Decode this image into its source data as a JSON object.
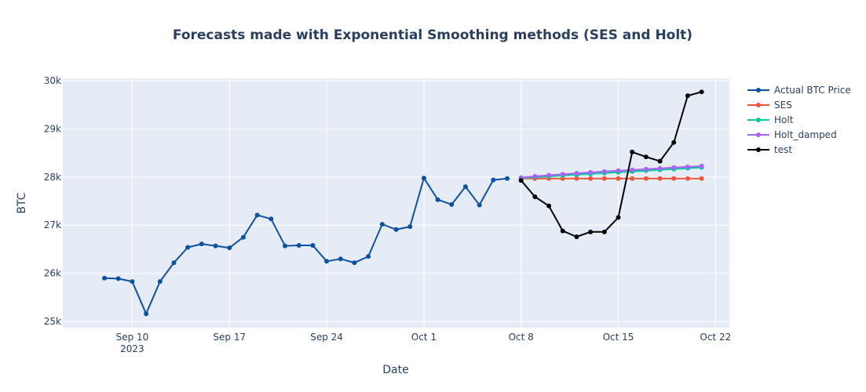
{
  "chart_data": {
    "type": "line",
    "title": "Forecasts made with Exponential Smoothing methods (SES and Holt)",
    "xlabel": "Date",
    "ylabel": "BTC",
    "grid": true,
    "legend_position": "top-right",
    "x_ticks": [
      {
        "date": "2023-09-10",
        "label": "Sep 10",
        "sublabel": "2023"
      },
      {
        "date": "2023-09-17",
        "label": "Sep 17",
        "sublabel": ""
      },
      {
        "date": "2023-09-24",
        "label": "Sep 24",
        "sublabel": ""
      },
      {
        "date": "2023-10-01",
        "label": "Oct 1",
        "sublabel": ""
      },
      {
        "date": "2023-10-08",
        "label": "Oct 8",
        "sublabel": ""
      },
      {
        "date": "2023-10-15",
        "label": "Oct 15",
        "sublabel": ""
      },
      {
        "date": "2023-10-22",
        "label": "Oct 22",
        "sublabel": ""
      }
    ],
    "xlim": [
      "2023-09-05",
      "2023-10-23"
    ],
    "y_ticks": [
      {
        "value": 25000,
        "label": "25k"
      },
      {
        "value": 26000,
        "label": "26k"
      },
      {
        "value": 27000,
        "label": "27k"
      },
      {
        "value": 28000,
        "label": "28k"
      },
      {
        "value": 29000,
        "label": "29k"
      },
      {
        "value": 30000,
        "label": "30k"
      }
    ],
    "ylim": [
      24870,
      30050
    ],
    "series": [
      {
        "name": "Actual BTC Price",
        "color": "#0d52a1",
        "x": [
          "2023-09-08",
          "2023-09-09",
          "2023-09-10",
          "2023-09-11",
          "2023-09-12",
          "2023-09-13",
          "2023-09-14",
          "2023-09-15",
          "2023-09-16",
          "2023-09-17",
          "2023-09-18",
          "2023-09-19",
          "2023-09-20",
          "2023-09-21",
          "2023-09-22",
          "2023-09-23",
          "2023-09-24",
          "2023-09-25",
          "2023-09-26",
          "2023-09-27",
          "2023-09-28",
          "2023-09-29",
          "2023-09-30",
          "2023-10-01",
          "2023-10-02",
          "2023-10-03",
          "2023-10-04",
          "2023-10-05",
          "2023-10-06",
          "2023-10-07"
        ],
        "y": [
          25900,
          25890,
          25830,
          25160,
          25830,
          26220,
          26540,
          26610,
          26570,
          26530,
          26750,
          27210,
          27130,
          26570,
          26580,
          26580,
          26250,
          26300,
          26220,
          26350,
          27020,
          26910,
          26970,
          27980,
          27530,
          27430,
          27800,
          27420,
          27940,
          27970
        ]
      },
      {
        "name": "SES",
        "color": "#ef553b",
        "x": [
          "2023-10-08",
          "2023-10-09",
          "2023-10-10",
          "2023-10-11",
          "2023-10-12",
          "2023-10-13",
          "2023-10-14",
          "2023-10-15",
          "2023-10-16",
          "2023-10-17",
          "2023-10-18",
          "2023-10-19",
          "2023-10-20",
          "2023-10-21"
        ],
        "y": [
          27970,
          27970,
          27970,
          27970,
          27970,
          27970,
          27970,
          27970,
          27970,
          27970,
          27970,
          27970,
          27970,
          27970
        ]
      },
      {
        "name": "Holt",
        "color": "#00cc96",
        "x": [
          "2023-10-08",
          "2023-10-09",
          "2023-10-10",
          "2023-10-11",
          "2023-10-12",
          "2023-10-13",
          "2023-10-14",
          "2023-10-15",
          "2023-10-16",
          "2023-10-17",
          "2023-10-18",
          "2023-10-19",
          "2023-10-20",
          "2023-10-21"
        ],
        "y": [
          27980,
          27997,
          28014,
          28031,
          28048,
          28065,
          28082,
          28099,
          28116,
          28133,
          28150,
          28167,
          28184,
          28201
        ]
      },
      {
        "name": "Holt_damped",
        "color": "#ab63fa",
        "x": [
          "2023-10-08",
          "2023-10-09",
          "2023-10-10",
          "2023-10-11",
          "2023-10-12",
          "2023-10-13",
          "2023-10-14",
          "2023-10-15",
          "2023-10-16",
          "2023-10-17",
          "2023-10-18",
          "2023-10-19",
          "2023-10-20",
          "2023-10-21"
        ],
        "y": [
          27990,
          28015,
          28038,
          28059,
          28078,
          28097,
          28115,
          28132,
          28149,
          28165,
          28181,
          28197,
          28212,
          28227
        ]
      },
      {
        "name": "test",
        "color": "#000000",
        "x": [
          "2023-10-08",
          "2023-10-09",
          "2023-10-10",
          "2023-10-11",
          "2023-10-12",
          "2023-10-13",
          "2023-10-14",
          "2023-10-15",
          "2023-10-16",
          "2023-10-17",
          "2023-10-18",
          "2023-10-19",
          "2023-10-20",
          "2023-10-21"
        ],
        "y": [
          27930,
          27590,
          27400,
          26880,
          26760,
          26860,
          26860,
          27160,
          28520,
          28420,
          28330,
          28720,
          29690,
          29770
        ]
      }
    ]
  }
}
